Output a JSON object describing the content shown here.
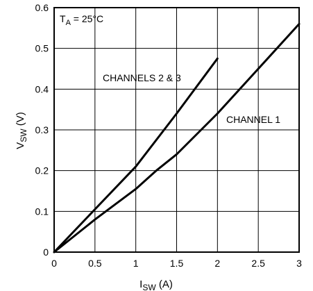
{
  "chart_data": {
    "type": "line",
    "xlabel_main": "I",
    "xlabel_sub": "SW",
    "xlabel_unit": " (A)",
    "ylabel_main": "V",
    "ylabel_sub": "SW",
    "ylabel_unit": " (V)",
    "condition_main": "T",
    "condition_sub": "A",
    "condition_rest": " = 25°C",
    "xlim": [
      0,
      3
    ],
    "ylim": [
      0,
      0.6
    ],
    "x_ticks": [
      "0",
      "0.5",
      "1",
      "1.5",
      "2",
      "2.5",
      "3"
    ],
    "y_ticks": [
      "0",
      "0.1",
      "0.2",
      "0.3",
      "0.4",
      "0.5",
      "0.6"
    ],
    "grid": true,
    "series": [
      {
        "name": "CHANNELS 2 & 3",
        "x": [
          0,
          0.5,
          1.0,
          1.5,
          2.0
        ],
        "y": [
          0,
          0.105,
          0.21,
          0.34,
          0.475
        ]
      },
      {
        "name": "CHANNEL 1",
        "x": [
          0,
          0.5,
          1.0,
          1.25,
          1.5,
          2.0,
          2.5,
          3.0
        ],
        "y": [
          0,
          0.08,
          0.155,
          0.2,
          0.24,
          0.34,
          0.45,
          0.56
        ]
      }
    ],
    "line_color": "#000000",
    "grid_color": "#000000"
  }
}
